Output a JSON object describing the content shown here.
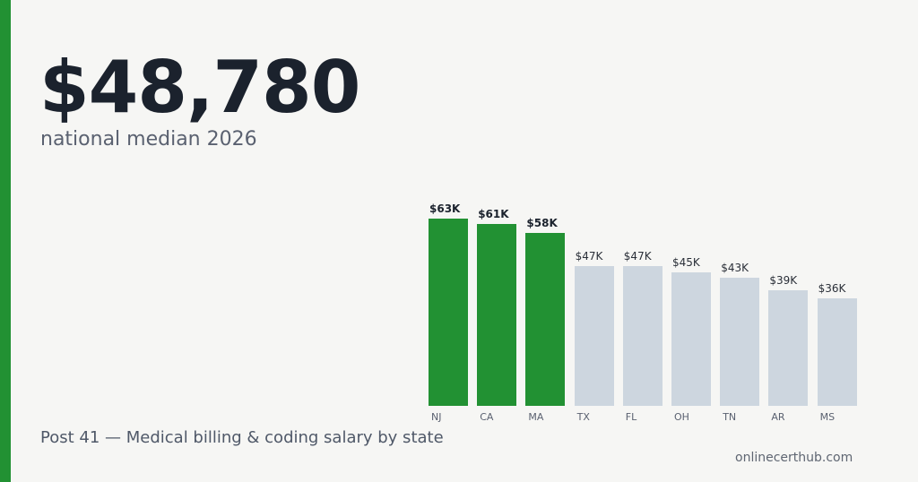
{
  "headline": {
    "value": "$48,780",
    "subtitle": "national median 2026"
  },
  "footer": {
    "caption": "Post 41 — Medical billing & coding salary by state",
    "source": "onlinecerthub.com"
  },
  "colors": {
    "accent": "#229133",
    "highlight_bar": "#229133",
    "normal_bar": "#cdd6df",
    "background": "#f6f6f4",
    "text_dark": "#1b222d"
  },
  "chart_data": {
    "type": "bar",
    "title": "Medical billing & coding salary by state",
    "categories": [
      "NJ",
      "CA",
      "MA",
      "TX",
      "FL",
      "OH",
      "TN",
      "AR",
      "MS"
    ],
    "values": [
      63,
      61,
      58,
      47,
      47,
      45,
      43,
      39,
      36
    ],
    "value_labels": [
      "$63K",
      "$61K",
      "$58K",
      "$47K",
      "$47K",
      "$45K",
      "$43K",
      "$39K",
      "$36K"
    ],
    "highlighted": [
      true,
      true,
      true,
      false,
      false,
      false,
      false,
      false,
      false
    ],
    "units": "thousand USD",
    "xlabel": "",
    "ylabel": "",
    "grid": false,
    "legend": "none"
  }
}
